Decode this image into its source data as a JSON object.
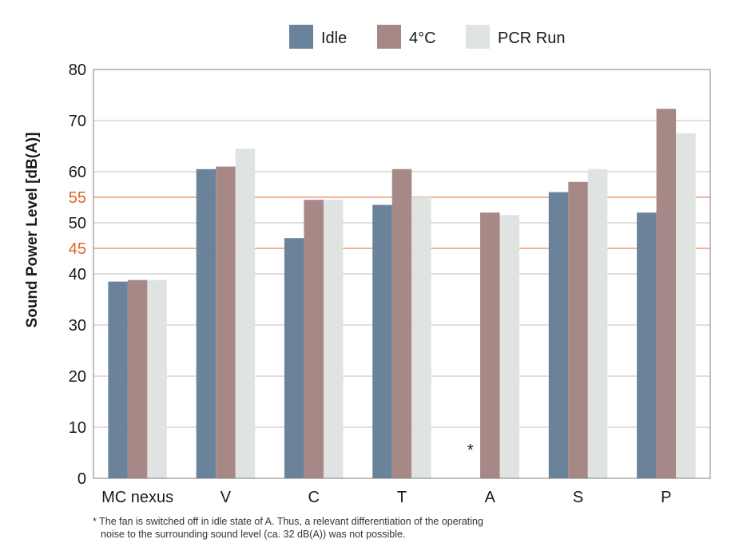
{
  "chart_data": {
    "type": "bar",
    "title": "",
    "xlabel": "",
    "ylabel": "Sound Power Level [dB(A)]",
    "ylim": [
      0,
      80
    ],
    "yticks": [
      "0",
      "10",
      "20",
      "30",
      "40",
      "45",
      "50",
      "55",
      "60",
      "70",
      "80"
    ],
    "highlight_ticks": [
      "45",
      "55"
    ],
    "reference_lines": [
      45,
      55
    ],
    "grid": true,
    "legend_position": "top",
    "categories": [
      "MC nexus",
      "V",
      "C",
      "T",
      "A",
      "S",
      "P"
    ],
    "series": [
      {
        "name": "Idle",
        "values": [
          38.5,
          60.5,
          47,
          53.5,
          null,
          56,
          52
        ]
      },
      {
        "name": "4°C",
        "values": [
          38.8,
          61,
          54.5,
          60.5,
          52,
          58,
          72.3
        ]
      },
      {
        "name": "PCR Run",
        "values": [
          38.8,
          64.5,
          54.5,
          55,
          51.5,
          60.5,
          67.5
        ]
      }
    ],
    "annotations": [
      {
        "category": "A",
        "series": "Idle",
        "text": "*"
      }
    ]
  },
  "colors": {
    "idle": "#6a839b",
    "cold": "#a68886",
    "pcr": "#dfe3e2",
    "reference_line": "#e9895a",
    "highlight_tick": "#e2642a",
    "grid": "#bfbfbf",
    "axis": "#7f7f7f"
  },
  "footnote": {
    "line1": "* The fan is switched off in idle state of A. Thus, a relevant differentiation of the operating",
    "line2": "noise to the surrounding sound level (ca. 32 dB(A)) was not possible."
  }
}
